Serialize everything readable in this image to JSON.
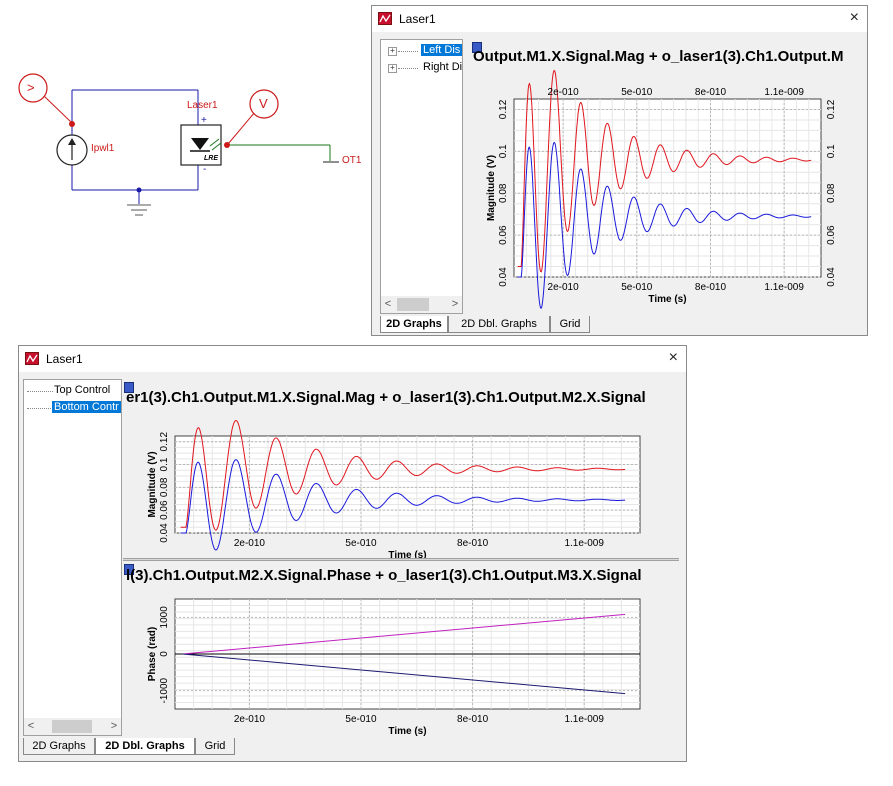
{
  "schematic": {
    "source_label": "Ipwl1",
    "laser_label": "Laser1",
    "laser_symbol_text": "LRE",
    "probe_current_symbol": ">",
    "probe_voltage_symbol": "V",
    "output_label": "OT1",
    "plus_sign": "+",
    "minus_sign": "-"
  },
  "window_top": {
    "title": "Laser1",
    "close_symbol": "×",
    "tree": [
      {
        "label": "Left Dis",
        "selected": true
      },
      {
        "label": "Right Di",
        "selected": false
      }
    ],
    "tabs": [
      {
        "label": "2D Graphs",
        "active": true
      },
      {
        "label": "2D Dbl. Graphs",
        "active": false
      },
      {
        "label": "Grid",
        "active": false
      }
    ],
    "graph_title": "Output.M1.X.Signal.Mag + o_laser1(3).Ch1.Output.M",
    "chart": {
      "xlabel": "Time (s)",
      "ylabel": "Magnitude (V)",
      "xticks": [
        "2e-010",
        "5e-010",
        "8e-010",
        "1.1e-009"
      ],
      "yticks_left": [
        "0.04",
        "0.06",
        "0.08",
        "0.1",
        "0.12"
      ],
      "yticks_right": [
        "0.04",
        "0.06",
        "0.08",
        "0.1",
        "0.12"
      ]
    }
  },
  "window_bottom": {
    "title": "Laser1",
    "close_symbol": "×",
    "tree": [
      {
        "label": "Top Control",
        "selected": false
      },
      {
        "label": "Bottom Contr",
        "selected": true
      }
    ],
    "tabs": [
      {
        "label": "2D Graphs",
        "active": false
      },
      {
        "label": "2D Dbl. Graphs",
        "active": true
      },
      {
        "label": "Grid",
        "active": false
      }
    ],
    "top_graph_title": "er1(3).Ch1.Output.M1.X.Signal.Mag + o_laser1(3).Ch1.Output.M2.X.Signal",
    "bottom_graph_title": "l(3).Ch1.Output.M2.X.Signal.Phase + o_laser1(3).Ch1.Output.M3.X.Signal",
    "chart_top": {
      "xlabel": "Time (s)",
      "ylabel": "Magnitude (V)",
      "xticks": [
        "2e-010",
        "5e-010",
        "8e-010",
        "1.1e-009"
      ],
      "yticks": [
        "0.04",
        "0.06",
        "0.08",
        "0.1",
        "0.12"
      ]
    },
    "chart_bottom": {
      "xlabel": "Time (s)",
      "ylabel": "Phase (rad)",
      "xticks": [
        "2e-010",
        "5e-010",
        "8e-010",
        "1.1e-009"
      ],
      "yticks": [
        "-1000",
        "0",
        "1000"
      ]
    }
  },
  "colors": {
    "red_trace": "#e0161e",
    "blue_trace": "#1a1adc",
    "magenta_trace": "#c020c0",
    "navy_trace": "#1a1a70",
    "probe": "#cc1a1a",
    "wire_blue": "#1a1aa8",
    "wire_green": "#1a7a1a",
    "selection": "#0078d7"
  },
  "chart_data": [
    {
      "type": "line",
      "xlabel": "Time (s)",
      "ylabel": "Magnitude (V)",
      "xlim": [
        0,
        1.25e-09
      ],
      "ylim": [
        0.04,
        0.125
      ],
      "x_ticks": [
        2e-10,
        5e-10,
        8e-10,
        1.1e-09
      ],
      "y_ticks": [
        0.04,
        0.06,
        0.08,
        0.1,
        0.12
      ],
      "series": [
        {
          "color": "#e0161e",
          "model": {
            "t0": 3e-11,
            "start": 0.045,
            "final": 0.096,
            "amp": 0.075,
            "period": 1.08e-10,
            "decay": 2.4e-10,
            "rise": 2.2e-11
          }
        },
        {
          "color": "#1a1adc",
          "model": {
            "t0": 3e-11,
            "start": 0.04,
            "final": 0.069,
            "amp": 0.062,
            "period": 1.08e-10,
            "decay": 2.4e-10,
            "rise": 2.2e-11
          }
        }
      ]
    },
    {
      "type": "line",
      "xlabel": "Time (s)",
      "ylabel": "Phase (rad)",
      "xlim": [
        0,
        1.25e-09
      ],
      "ylim": [
        -1500,
        1500
      ],
      "x_ticks": [
        2e-10,
        5e-10,
        8e-10,
        1.1e-09
      ],
      "y_ticks": [
        -1000,
        0,
        1000
      ],
      "series": [
        {
          "color": "#c020c0",
          "points": [
            [
              2e-11,
              0
            ],
            [
              1.21e-09,
              1080
            ]
          ]
        },
        {
          "color": "#1a1a70",
          "points": [
            [
              2e-11,
              0
            ],
            [
              1.21e-09,
              -1080
            ]
          ]
        }
      ]
    }
  ]
}
